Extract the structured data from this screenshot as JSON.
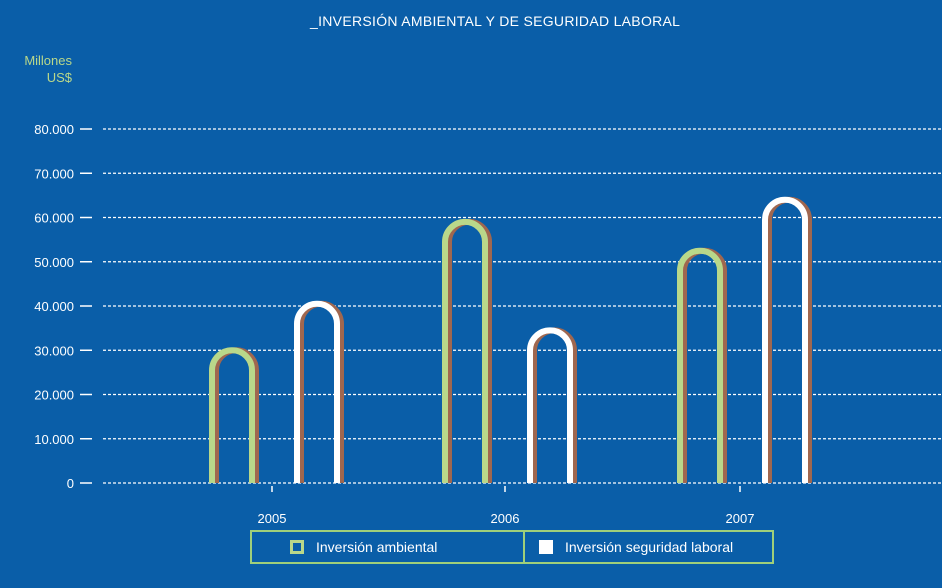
{
  "chart_data": {
    "type": "bar",
    "title": "_INVERSIÓN AMBIENTAL Y DE SEGURIDAD LABORAL",
    "ylabel": [
      "Millones",
      "US$"
    ],
    "categories": [
      "2005",
      "2006",
      "2007"
    ],
    "series": [
      {
        "name": "Inversión ambiental",
        "values": [
          30000,
          59000,
          52500
        ],
        "color": "#b9d88a"
      },
      {
        "name": "Inversión seguridad laboral",
        "values": [
          40500,
          34500,
          64000
        ],
        "color": "#ffffff"
      }
    ],
    "yticks": [
      "0",
      "10.000",
      "20.000",
      "30.000",
      "40.000",
      "50.000",
      "60.000",
      "70.000",
      "80.000"
    ],
    "ylim": [
      0,
      80000
    ],
    "grid": true,
    "legend_position": "bottom",
    "shadow_color": "#a0674f",
    "background": "#0a5ea8"
  }
}
